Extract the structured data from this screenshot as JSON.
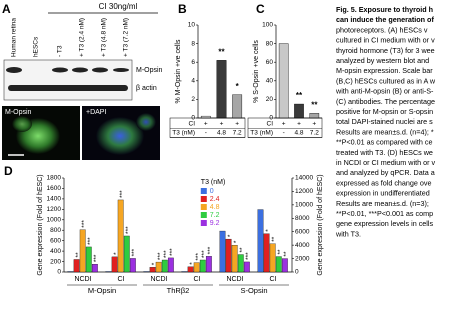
{
  "panel_a": {
    "label": "A",
    "treatment": "CI 30ng/ml",
    "lanes": [
      "Human retina",
      "hESCs",
      "- T3",
      "+ T3 (2.4 nM)",
      "+ T3 (4.8 nM)",
      "+ T3 (7.2 nM)"
    ],
    "bands": [
      "M-Opsin",
      "β actin"
    ],
    "images": [
      "M-Opsin",
      "+DAPI"
    ]
  },
  "caption": {
    "lines": [
      "Fig. 5. Exposure to thyroid h",
      "can induce the generation of",
      "photoreceptors. (A) hESCs v",
      "cultured in CI medium with or v",
      "thyroid hormone (T3) for 3 wee",
      "analyzed by western blot and",
      "M-opsin expression. Scale bar",
      "(B,C) hESCs cultured as in A w",
      "with anti-M-opsin (B) or anti-S-",
      "(C) antibodies. The percentage",
      "positive for M-opsin or S-opsin",
      "total DAPI-stained nuclei are s",
      "Results are mean±s.d. (n=4); *",
      "**P<0.01 as compared with ce",
      "treated with T3. (D) hESCs we",
      "in NCDI or CI medium with or v",
      "and analyzed by qPCR. Data a",
      "expressed as fold change ove",
      "expression in undifferentiated",
      "Results are mean±s.d. (n=3);",
      "**P<0.01, ***P<0.001 as comp",
      "gene expression levels in cells",
      "with T3."
    ]
  },
  "chart_data": [
    {
      "type": "bar",
      "label": "B",
      "ylabel": "% M-Opsin +ve cells",
      "ylim": [
        0,
        10
      ],
      "yticks": [
        0,
        2,
        4,
        6,
        8,
        10
      ],
      "values": [
        0.2,
        6.2,
        2.5
      ],
      "colors": [
        "#d9d9d9",
        "#3a3a3a",
        "#a6a6a6"
      ],
      "stars": [
        null,
        "**",
        "*"
      ],
      "rows": [
        {
          "name": "CI",
          "cells": [
            "+",
            "+",
            "+"
          ]
        },
        {
          "name": "T3 (nM)",
          "cells": [
            "-",
            "4.8",
            "7.2"
          ]
        }
      ]
    },
    {
      "type": "bar",
      "label": "C",
      "ylabel": "% S-Opsin +ve cells",
      "ylim": [
        0,
        100
      ],
      "yticks": [
        0,
        20,
        40,
        60,
        80,
        100
      ],
      "values": [
        80,
        15,
        5
      ],
      "colors": [
        "#c8c8c8",
        "#3a3a3a",
        "#a6a6a6"
      ],
      "stars": [
        null,
        "**",
        "**"
      ],
      "rows": [
        {
          "name": "CI",
          "cells": [
            "+",
            "+",
            "+"
          ]
        },
        {
          "name": "T3 (nM)",
          "cells": [
            "-",
            "4.8",
            "7.2"
          ]
        }
      ]
    },
    {
      "type": "grouped-bar",
      "label": "D",
      "ylabel": "Gene expression (Fold of hESC)",
      "y2label": "Gene expression (Fold of hESC)",
      "ylim": [
        0,
        1800
      ],
      "yticks": [
        0,
        200,
        400,
        600,
        800,
        1000,
        1200,
        1400,
        1600,
        1800
      ],
      "y2lim": [
        0,
        14000
      ],
      "y2ticks": [
        0,
        2000,
        4000,
        6000,
        8000,
        10000,
        12000,
        14000
      ],
      "categories": [
        "NCDI",
        "CI",
        "NCDI",
        "CI",
        "NCDI",
        "CI"
      ],
      "groups": [
        "M-Opsin",
        "ThRβ2",
        "S-Opsin"
      ],
      "category_axis": [
        "y",
        "y",
        "y",
        "y",
        "y2",
        "y2"
      ],
      "legend_title": "T3 (nM)",
      "series": [
        {
          "name": "0",
          "color": "#3b6fe0",
          "values": [
            10,
            10,
            10,
            10,
            6100,
            9300
          ],
          "stars": [
            null,
            null,
            null,
            null,
            null,
            null
          ]
        },
        {
          "name": "2.4",
          "color": "#e02020",
          "values": [
            240,
            290,
            90,
            100,
            4900,
            5700
          ],
          "stars": [
            "**",
            "*",
            "*",
            "*",
            "*",
            "*"
          ]
        },
        {
          "name": "4.8",
          "color": "#f5a623",
          "values": [
            810,
            1380,
            190,
            180,
            4000,
            4200
          ],
          "stars": [
            "***",
            "***",
            "***",
            "***",
            "*",
            "**"
          ]
        },
        {
          "name": "7.2",
          "color": "#2ecc40",
          "values": [
            480,
            690,
            230,
            230,
            2600,
            2300
          ],
          "stars": [
            "***",
            "***",
            "***",
            "***",
            "**",
            "**"
          ]
        },
        {
          "name": "9.2",
          "color": "#9b30e0",
          "values": [
            150,
            260,
            270,
            300,
            1500,
            2000
          ],
          "stars": [
            "***",
            "***",
            "***",
            "***",
            "***",
            "**"
          ]
        }
      ]
    }
  ]
}
